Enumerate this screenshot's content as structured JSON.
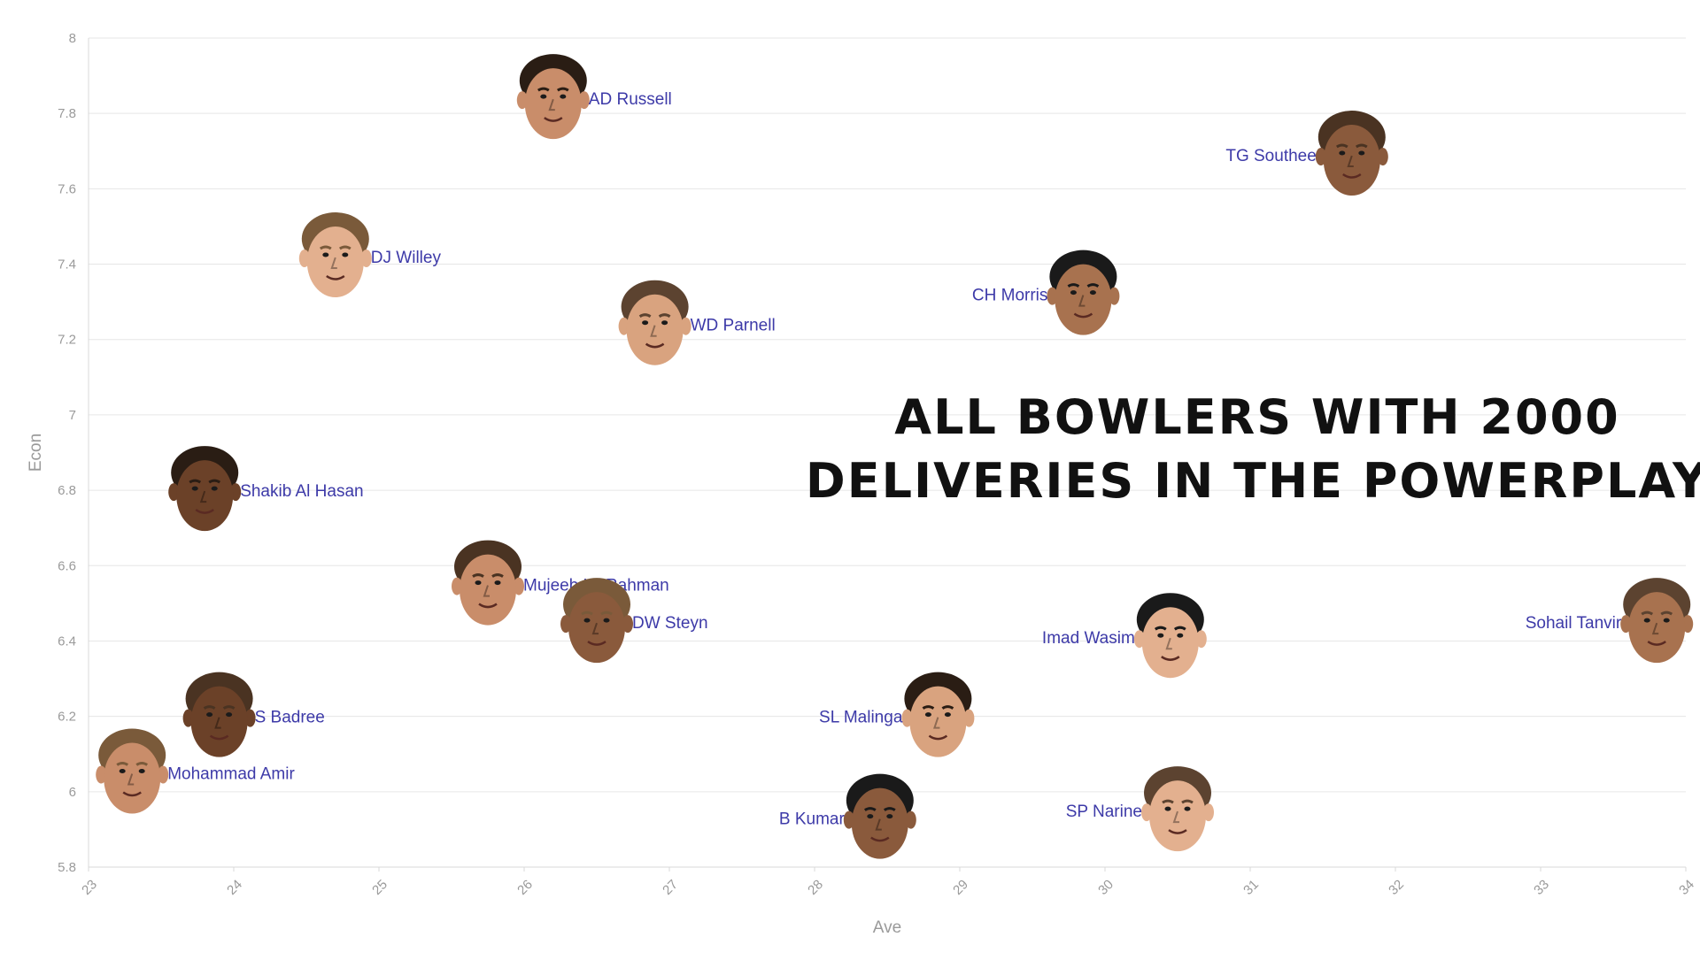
{
  "chart_data": {
    "type": "scatter",
    "title": "ALL BOWLERS WITH 2000 DELIVERIES IN THE POWERPLAY",
    "title_lines": [
      "ALL BOWLERS WITH 2000",
      "DELIVERIES IN THE POWERPLAY"
    ],
    "xlabel": "Ave",
    "ylabel": "Econ",
    "xlim": [
      23,
      34
    ],
    "ylim": [
      5.8,
      8
    ],
    "x_ticks": [
      "23",
      "24",
      "25",
      "26",
      "27",
      "28",
      "29",
      "30",
      "31",
      "32",
      "33",
      "34"
    ],
    "y_ticks": [
      "5.8",
      "6",
      "6.2",
      "6.4",
      "6.6",
      "6.8",
      "7",
      "7.2",
      "7.4",
      "7.6",
      "7.8",
      "8"
    ],
    "grid": true,
    "label_color": "#3d3aa8",
    "points": [
      {
        "name": "AD Russell",
        "x": 26.2,
        "y": 7.84,
        "label_side": "right"
      },
      {
        "name": "TG Southee",
        "x": 31.7,
        "y": 7.69,
        "label_side": "left"
      },
      {
        "name": "DJ Willey",
        "x": 24.7,
        "y": 7.42,
        "label_side": "right"
      },
      {
        "name": "CH Morris",
        "x": 29.85,
        "y": 7.32,
        "label_side": "left"
      },
      {
        "name": "WD Parnell",
        "x": 26.9,
        "y": 7.24,
        "label_side": "right"
      },
      {
        "name": "Shakib Al Hasan",
        "x": 23.8,
        "y": 6.8,
        "label_side": "right"
      },
      {
        "name": "Mujeeb Ur Rahman",
        "x": 25.75,
        "y": 6.55,
        "label_side": "right"
      },
      {
        "name": "DW Steyn",
        "x": 26.5,
        "y": 6.45,
        "label_side": "right"
      },
      {
        "name": "Imad Wasim",
        "x": 30.45,
        "y": 6.41,
        "label_side": "left"
      },
      {
        "name": "Sohail Tanvir",
        "x": 33.8,
        "y": 6.45,
        "label_side": "left"
      },
      {
        "name": "SL Malinga",
        "x": 28.85,
        "y": 6.2,
        "label_side": "left"
      },
      {
        "name": "S Badree",
        "x": 23.9,
        "y": 6.2,
        "label_side": "right"
      },
      {
        "name": "Mohammad Amir",
        "x": 23.3,
        "y": 6.05,
        "label_side": "right"
      },
      {
        "name": "B Kumar",
        "x": 28.45,
        "y": 5.93,
        "label_side": "left"
      },
      {
        "name": "SP Narine",
        "x": 30.5,
        "y": 5.95,
        "label_side": "left"
      }
    ]
  }
}
